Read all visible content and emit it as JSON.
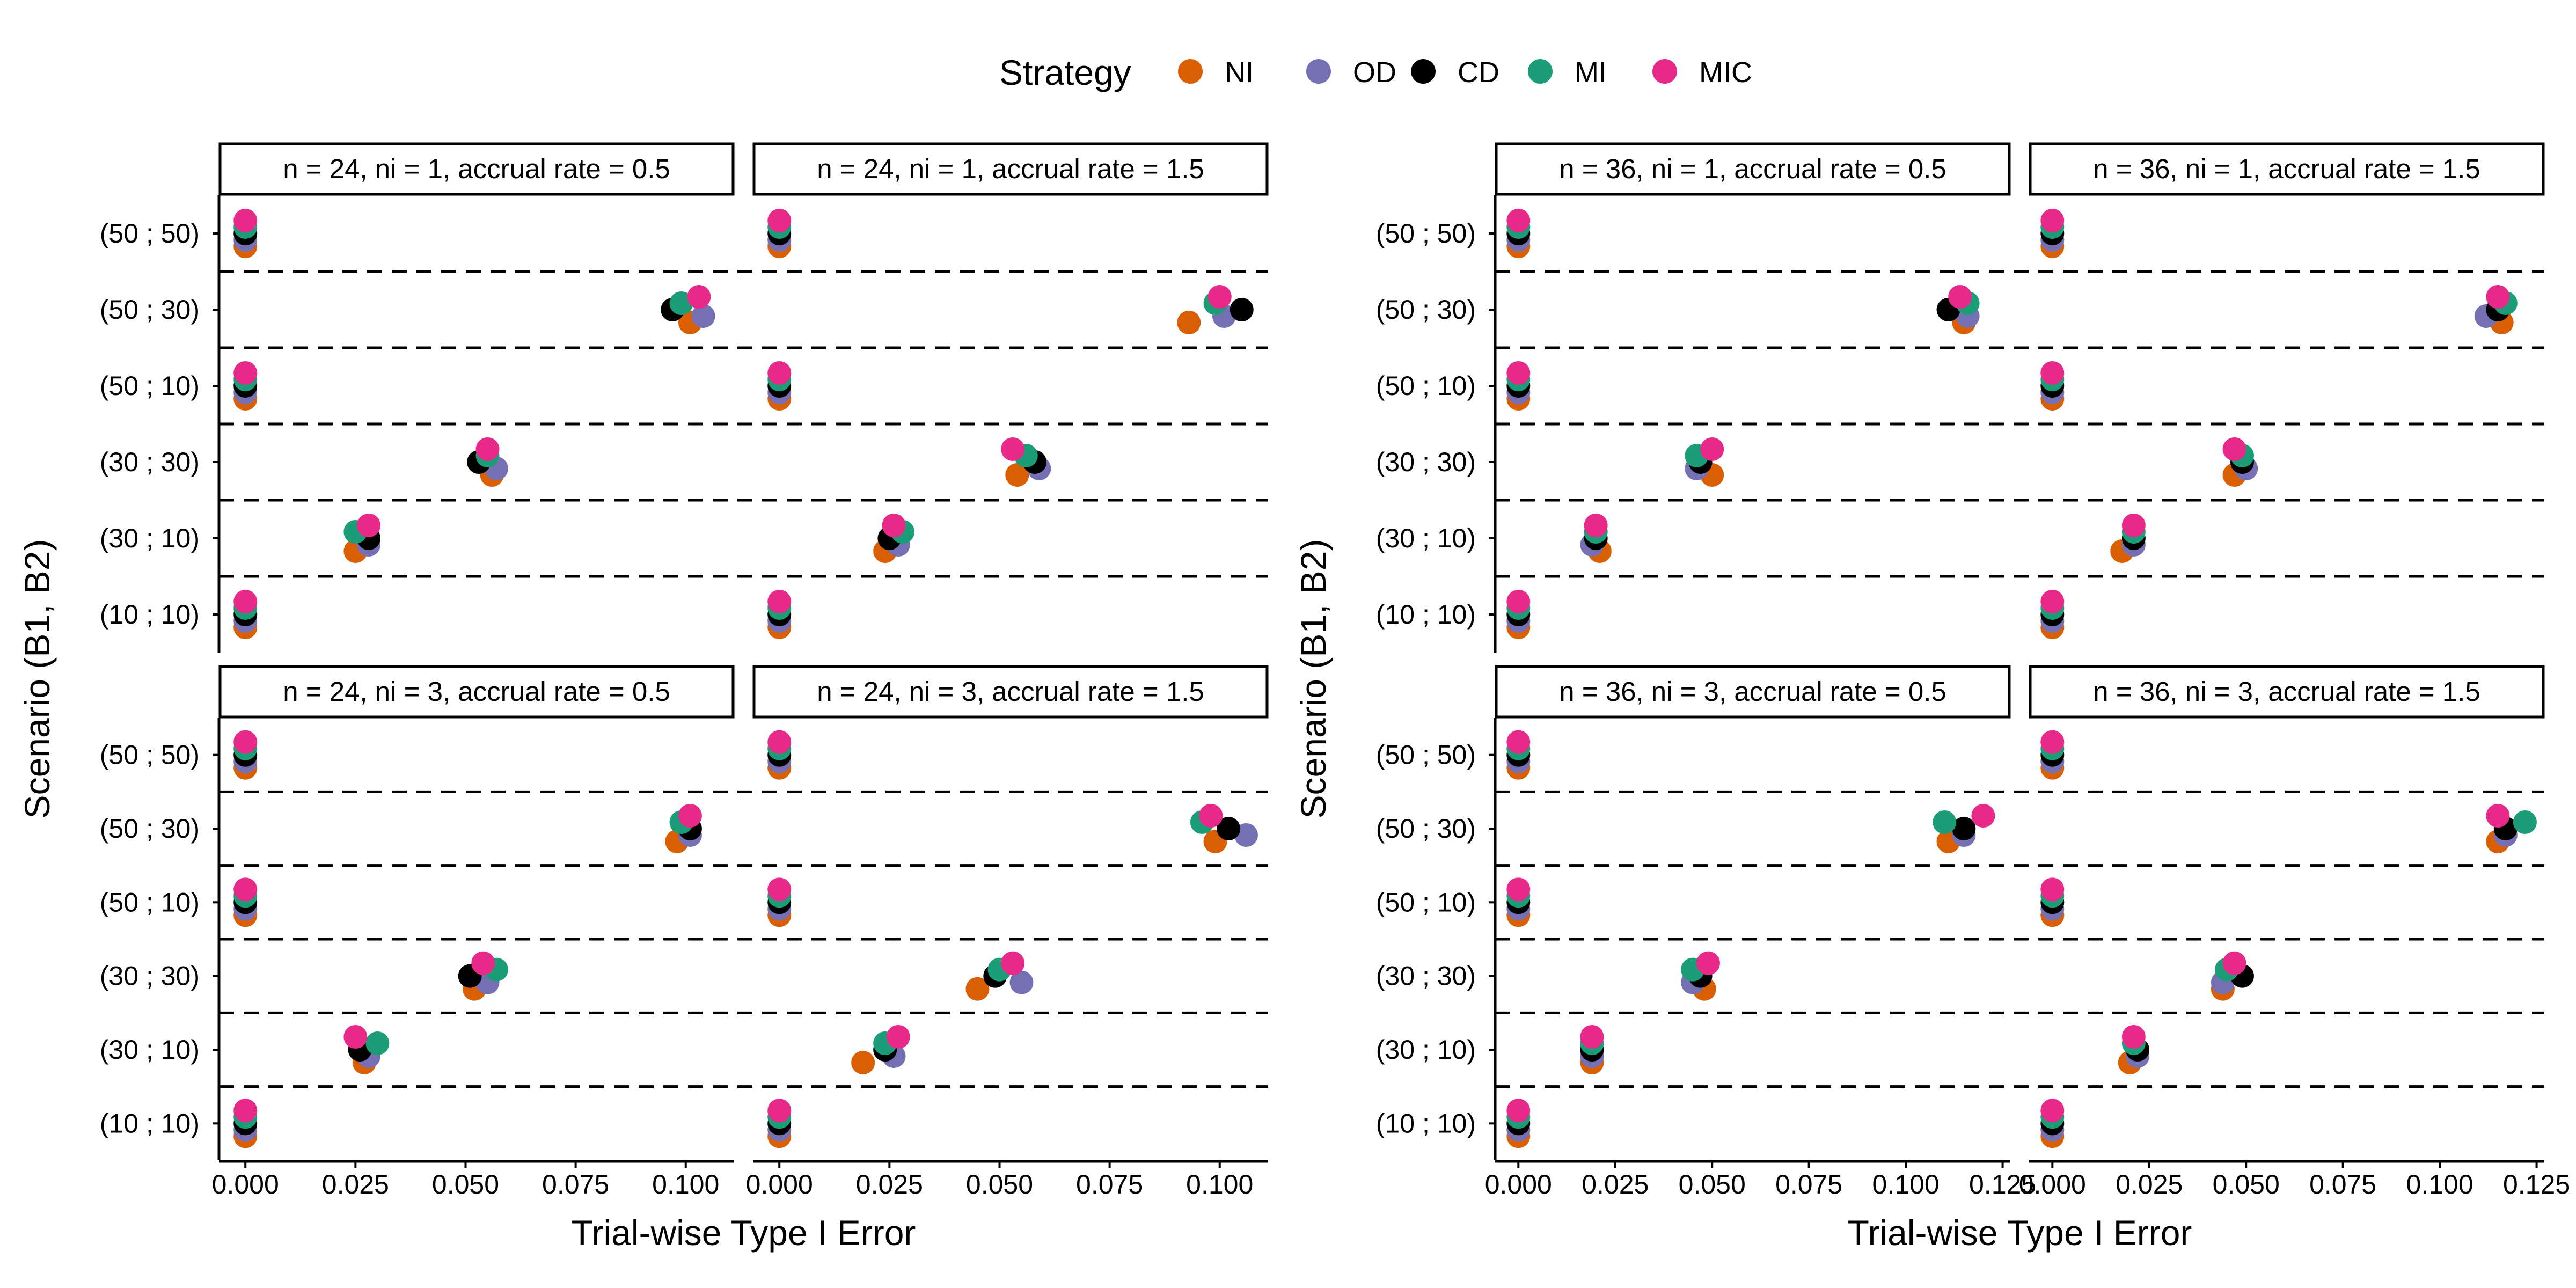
{
  "legend": {
    "title": "Strategy",
    "items": [
      {
        "label": "NI",
        "color": "#D95F02"
      },
      {
        "label": "OD",
        "color": "#7570B3"
      },
      {
        "label": "CD",
        "color": "#000000"
      },
      {
        "label": "MI",
        "color": "#1B9E77"
      },
      {
        "label": "MIC",
        "color": "#E7298A"
      }
    ]
  },
  "chart_data": [
    {
      "type": "scatter",
      "ylabel": "Scenario (B1, B2)",
      "xlabel": "Trial-wise Type I Error",
      "categories": [
        "(50 ; 50)",
        "(50 ; 30)",
        "(50 ; 10)",
        "(30 ; 30)",
        "(30 ; 10)",
        "(10 ; 10)"
      ],
      "xticks": [
        "0.000",
        "0.025",
        "0.050",
        "0.075",
        "0.100"
      ],
      "xlim": [
        -0.006,
        0.111
      ],
      "panels": [
        {
          "strip": "n = 24, ni = 1, accrual rate = 0.5",
          "series": [
            {
              "name": "NI",
              "values": [
                0,
                0.101,
                0,
                0.056,
                0.025,
                0
              ]
            },
            {
              "name": "OD",
              "values": [
                0,
                0.104,
                0,
                0.057,
                0.028,
                0
              ]
            },
            {
              "name": "CD",
              "values": [
                0,
                0.097,
                0,
                0.053,
                0.028,
                0
              ]
            },
            {
              "name": "MI",
              "values": [
                0,
                0.099,
                0,
                0.055,
                0.025,
                0
              ]
            },
            {
              "name": "MIC",
              "values": [
                0,
                0.103,
                0,
                0.055,
                0.028,
                0
              ]
            }
          ]
        },
        {
          "strip": "n = 24, ni = 1, accrual rate = 1.5",
          "series": [
            {
              "name": "NI",
              "values": [
                0,
                0.093,
                0,
                0.054,
                0.024,
                0
              ]
            },
            {
              "name": "OD",
              "values": [
                0,
                0.101,
                0,
                0.059,
                0.027,
                0
              ]
            },
            {
              "name": "CD",
              "values": [
                0,
                0.105,
                0,
                0.058,
                0.025,
                0
              ]
            },
            {
              "name": "MI",
              "values": [
                0,
                0.099,
                0,
                0.056,
                0.028,
                0
              ]
            },
            {
              "name": "MIC",
              "values": [
                0,
                0.1,
                0,
                0.053,
                0.026,
                0
              ]
            }
          ]
        },
        {
          "strip": "n = 24, ni = 3, accrual rate = 0.5",
          "series": [
            {
              "name": "NI",
              "values": [
                0,
                0.098,
                0,
                0.052,
                0.027,
                0
              ]
            },
            {
              "name": "OD",
              "values": [
                0,
                0.101,
                0,
                0.055,
                0.028,
                0
              ]
            },
            {
              "name": "CD",
              "values": [
                0,
                0.101,
                0,
                0.051,
                0.026,
                0
              ]
            },
            {
              "name": "MI",
              "values": [
                0,
                0.099,
                0,
                0.057,
                0.03,
                0
              ]
            },
            {
              "name": "MIC",
              "values": [
                0,
                0.101,
                0,
                0.054,
                0.025,
                0
              ]
            }
          ]
        },
        {
          "strip": "n = 24, ni = 3, accrual rate = 1.5",
          "series": [
            {
              "name": "NI",
              "values": [
                0,
                0.099,
                0,
                0.045,
                0.019,
                0
              ]
            },
            {
              "name": "OD",
              "values": [
                0,
                0.106,
                0,
                0.055,
                0.026,
                0
              ]
            },
            {
              "name": "CD",
              "values": [
                0,
                0.102,
                0,
                0.049,
                0.024,
                0
              ]
            },
            {
              "name": "MI",
              "values": [
                0,
                0.096,
                0,
                0.05,
                0.024,
                0
              ]
            },
            {
              "name": "MIC",
              "values": [
                0,
                0.098,
                0,
                0.053,
                0.027,
                0
              ]
            }
          ]
        }
      ]
    },
    {
      "type": "scatter",
      "ylabel": "Scenario (B1, B2)",
      "xlabel": "Trial-wise Type I Error",
      "categories": [
        "(50 ; 50)",
        "(50 ; 30)",
        "(50 ; 10)",
        "(30 ; 30)",
        "(30 ; 10)",
        "(10 ; 10)"
      ],
      "xticks": [
        "0.000",
        "0.025",
        "0.050",
        "0.075",
        "0.100",
        "0.125"
      ],
      "xlim": [
        -0.006,
        0.127
      ],
      "panels": [
        {
          "strip": "n = 36, ni = 1, accrual rate = 0.5",
          "series": [
            {
              "name": "NI",
              "values": [
                0,
                0.115,
                0,
                0.05,
                0.021,
                0
              ]
            },
            {
              "name": "OD",
              "values": [
                0,
                0.116,
                0,
                0.046,
                0.019,
                0
              ]
            },
            {
              "name": "CD",
              "values": [
                0,
                0.111,
                0,
                0.047,
                0.02,
                0
              ]
            },
            {
              "name": "MI",
              "values": [
                0,
                0.116,
                0,
                0.046,
                0.02,
                0
              ]
            },
            {
              "name": "MIC",
              "values": [
                0,
                0.114,
                0,
                0.05,
                0.02,
                0
              ]
            }
          ]
        },
        {
          "strip": "n = 36, ni = 1, accrual rate = 1.5",
          "series": [
            {
              "name": "NI",
              "values": [
                0,
                0.116,
                0,
                0.047,
                0.018,
                0
              ]
            },
            {
              "name": "OD",
              "values": [
                0,
                0.112,
                0,
                0.05,
                0.021,
                0
              ]
            },
            {
              "name": "CD",
              "values": [
                0,
                0.115,
                0,
                0.049,
                0.021,
                0
              ]
            },
            {
              "name": "MI",
              "values": [
                0,
                0.117,
                0,
                0.049,
                0.021,
                0
              ]
            },
            {
              "name": "MIC",
              "values": [
                0,
                0.115,
                0,
                0.047,
                0.021,
                0
              ]
            }
          ]
        },
        {
          "strip": "n = 36, ni = 3, accrual rate = 0.5",
          "series": [
            {
              "name": "NI",
              "values": [
                0,
                0.111,
                0,
                0.048,
                0.019,
                0
              ]
            },
            {
              "name": "OD",
              "values": [
                0,
                0.115,
                0,
                0.045,
                0.019,
                0
              ]
            },
            {
              "name": "CD",
              "values": [
                0,
                0.115,
                0,
                0.047,
                0.019,
                0
              ]
            },
            {
              "name": "MI",
              "values": [
                0,
                0.11,
                0,
                0.045,
                0.019,
                0
              ]
            },
            {
              "name": "MIC",
              "values": [
                0,
                0.12,
                0,
                0.049,
                0.019,
                0
              ]
            }
          ]
        },
        {
          "strip": "n = 36, ni = 3, accrual rate = 1.5",
          "series": [
            {
              "name": "NI",
              "values": [
                0,
                0.115,
                0,
                0.044,
                0.02,
                0
              ]
            },
            {
              "name": "OD",
              "values": [
                0,
                0.117,
                0,
                0.044,
                0.022,
                0
              ]
            },
            {
              "name": "CD",
              "values": [
                0,
                0.117,
                0,
                0.049,
                0.022,
                0
              ]
            },
            {
              "name": "MI",
              "values": [
                0,
                0.122,
                0,
                0.045,
                0.021,
                0
              ]
            },
            {
              "name": "MIC",
              "values": [
                0,
                0.115,
                0,
                0.047,
                0.021,
                0
              ]
            }
          ]
        }
      ]
    }
  ]
}
